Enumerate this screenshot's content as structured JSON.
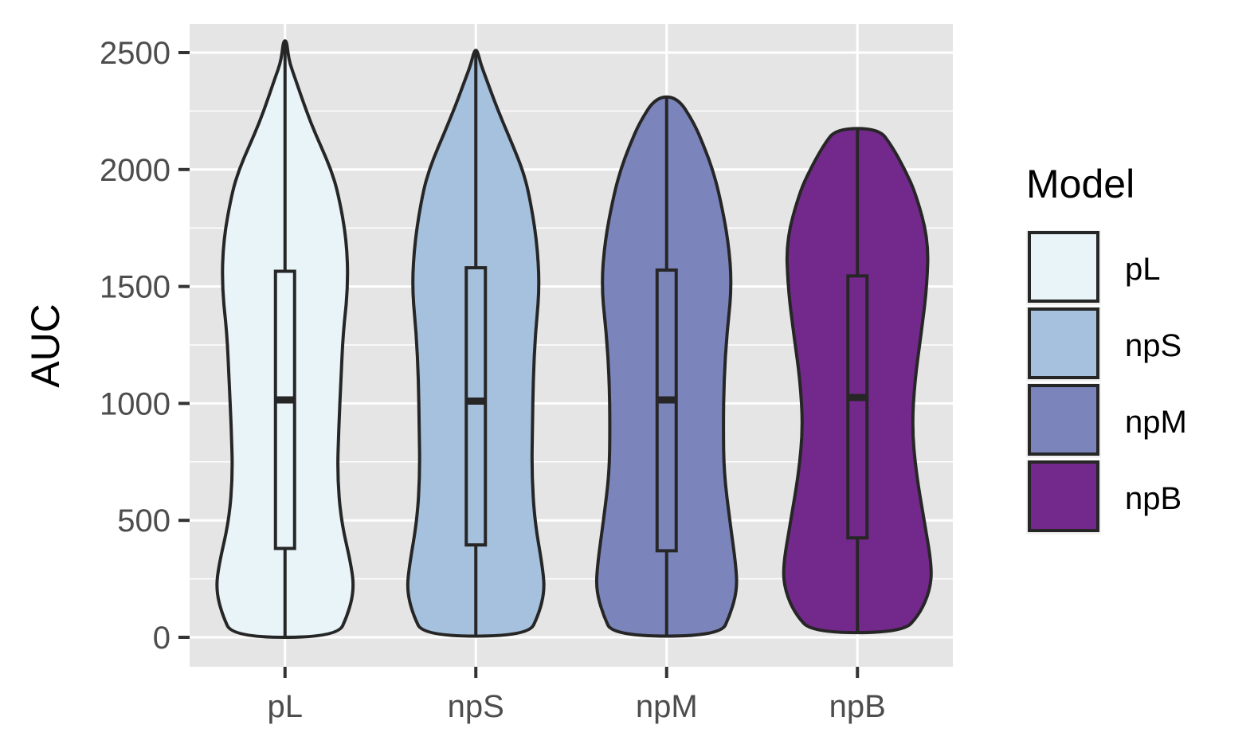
{
  "chart_data": {
    "type": "violin",
    "title": "",
    "xlabel": "",
    "ylabel": "AUC",
    "ylim": [
      -80,
      2650
    ],
    "yticks": [
      0,
      500,
      1000,
      1500,
      2000,
      2500
    ],
    "ytick_labels": [
      "0",
      "500",
      "1000",
      "1500",
      "2000",
      "2500"
    ],
    "categories": [
      "pL",
      "npS",
      "npM",
      "npB"
    ],
    "grid": true,
    "legend": {
      "title": "Model",
      "position": "right",
      "entries": [
        "pL",
        "npS",
        "npM",
        "npB"
      ]
    },
    "series": [
      {
        "name": "pL",
        "color": "#e8f4f8",
        "min": 0,
        "max": 2550,
        "box": {
          "q1": 380,
          "median": 1015,
          "q3": 1565
        },
        "density": [
          [
            0,
            73
          ],
          [
            100,
            88
          ],
          [
            200,
            96
          ],
          [
            300,
            93
          ],
          [
            500,
            78
          ],
          [
            700,
            73
          ],
          [
            900,
            75
          ],
          [
            1100,
            78
          ],
          [
            1300,
            81
          ],
          [
            1500,
            88
          ],
          [
            1700,
            86
          ],
          [
            1900,
            74
          ],
          [
            2000,
            64
          ],
          [
            2100,
            50
          ],
          [
            2200,
            36
          ],
          [
            2300,
            24
          ],
          [
            2400,
            13
          ],
          [
            2450,
            7
          ],
          [
            2500,
            4
          ],
          [
            2550,
            2
          ]
        ]
      },
      {
        "name": "npS",
        "color": "#a6c1dd",
        "min": 5,
        "max": 2510,
        "box": {
          "q1": 395,
          "median": 1010,
          "q3": 1580
        },
        "density": [
          [
            5,
            73
          ],
          [
            100,
            88
          ],
          [
            200,
            96
          ],
          [
            300,
            93
          ],
          [
            500,
            82
          ],
          [
            700,
            78
          ],
          [
            900,
            79
          ],
          [
            1100,
            80
          ],
          [
            1300,
            83
          ],
          [
            1500,
            89
          ],
          [
            1700,
            85
          ],
          [
            1900,
            74
          ],
          [
            2000,
            65
          ],
          [
            2100,
            52
          ],
          [
            2200,
            38
          ],
          [
            2300,
            25
          ],
          [
            2400,
            13
          ],
          [
            2450,
            7
          ],
          [
            2510,
            2
          ]
        ]
      },
      {
        "name": "npM",
        "color": "#7b85bb",
        "min": 5,
        "max": 2310,
        "box": {
          "q1": 370,
          "median": 1015,
          "q3": 1570
        },
        "density": [
          [
            5,
            75
          ],
          [
            100,
            89
          ],
          [
            200,
            98
          ],
          [
            300,
            97
          ],
          [
            500,
            88
          ],
          [
            700,
            80
          ],
          [
            900,
            79
          ],
          [
            1100,
            80
          ],
          [
            1300,
            84
          ],
          [
            1500,
            91
          ],
          [
            1700,
            86
          ],
          [
            1900,
            73
          ],
          [
            2000,
            64
          ],
          [
            2100,
            52
          ],
          [
            2200,
            38
          ],
          [
            2310,
            15
          ]
        ]
      },
      {
        "name": "npB",
        "color": "#73298b",
        "min": 20,
        "max": 2175,
        "box": {
          "q1": 425,
          "median": 1025,
          "q3": 1545
        },
        "density": [
          [
            20,
            63
          ],
          [
            100,
            87
          ],
          [
            200,
            101
          ],
          [
            300,
            104
          ],
          [
            500,
            93
          ],
          [
            700,
            82
          ],
          [
            900,
            76
          ],
          [
            1100,
            80
          ],
          [
            1300,
            89
          ],
          [
            1500,
            97
          ],
          [
            1700,
            99
          ],
          [
            1900,
            81
          ],
          [
            2000,
            66
          ],
          [
            2100,
            48
          ],
          [
            2175,
            30
          ]
        ]
      }
    ]
  }
}
